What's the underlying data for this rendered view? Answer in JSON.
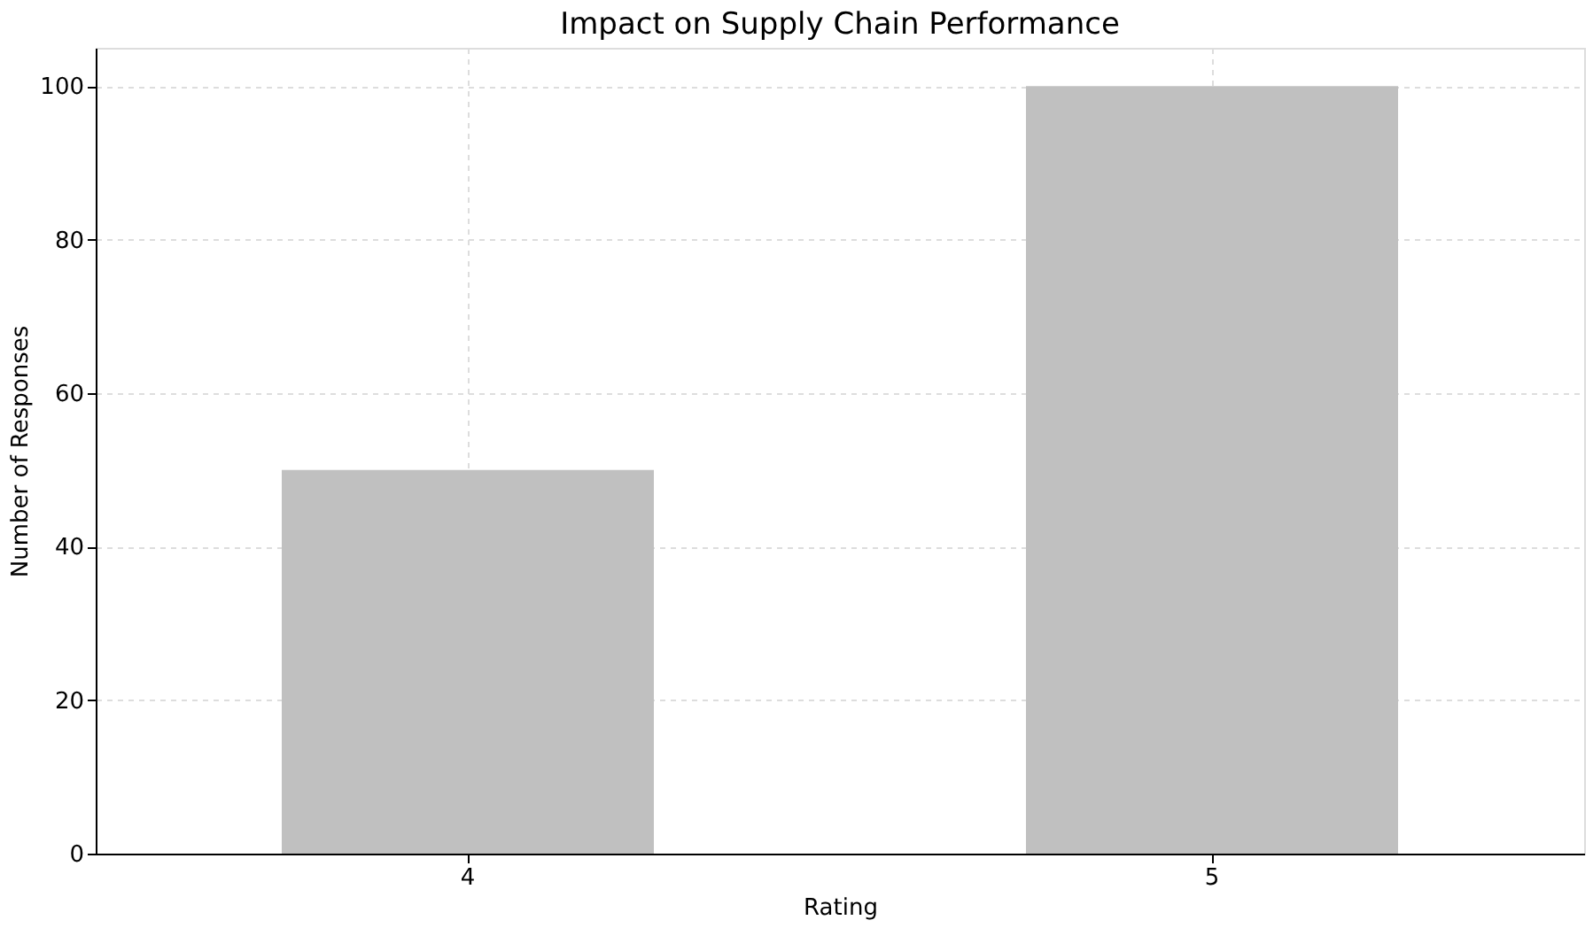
{
  "chart_data": {
    "type": "bar",
    "title": "Impact on Supply Chain Performance",
    "xlabel": "Rating",
    "ylabel": "Number of Responses",
    "categories": [
      "4",
      "5"
    ],
    "values": [
      50,
      100
    ],
    "color": "#c0c0c0",
    "ylim": [
      0,
      105
    ],
    "yticks": [
      0,
      20,
      40,
      60,
      80,
      100
    ],
    "grid": true
  }
}
